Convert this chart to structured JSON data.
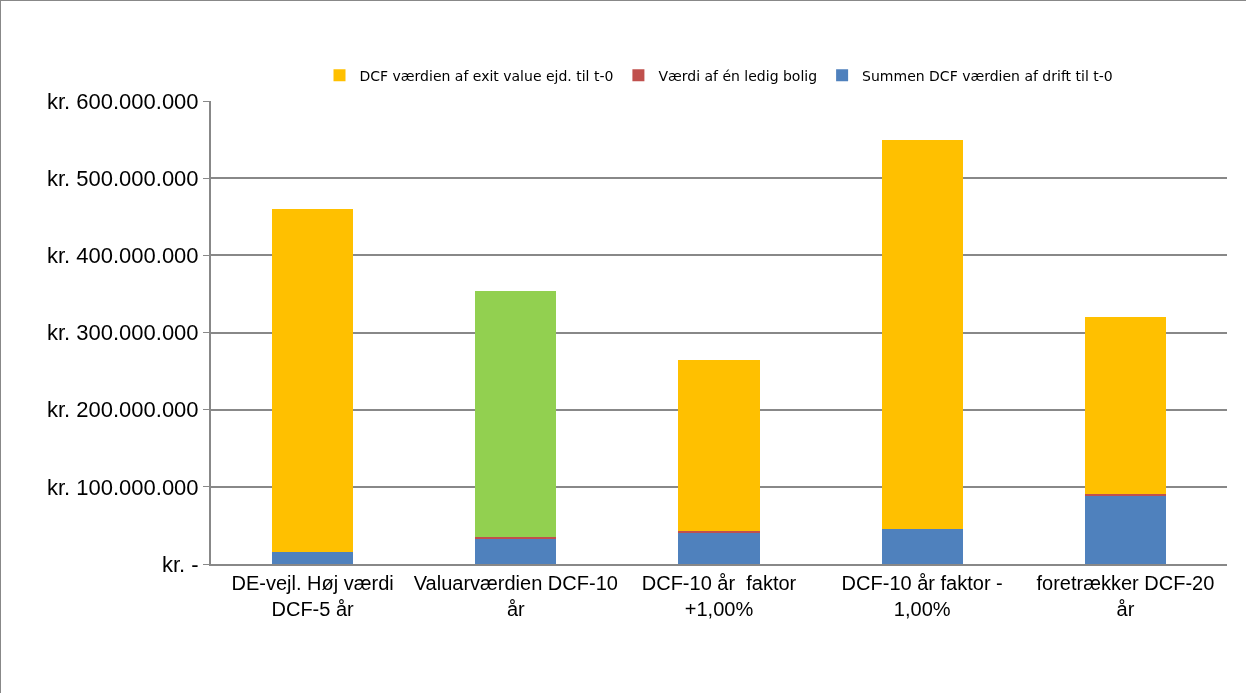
{
  "chart_data": {
    "type": "bar",
    "stacked": true,
    "categories": [
      "DE-vejl. Høj værdi DCF-5 år",
      "Valuarværdien DCF-10 år",
      "DCF-10 år  faktor +1,00%",
      "DCF-10 år faktor - 1,00%",
      "foretrækker DCF-20 år"
    ],
    "series": [
      {
        "name": "Summen DCF værdien af drift til t-0",
        "color": "#4f81bd",
        "values": [
          15000000,
          33000000,
          40000000,
          45000000,
          89000000
        ]
      },
      {
        "name": "Værdi af én ledig bolig",
        "color": "#c0504d",
        "values": [
          0,
          2000000,
          3000000,
          0,
          2000000
        ]
      },
      {
        "name": "DCF værdien af exit value ejd. til t-0",
        "color": "#ffc000",
        "colors": [
          "#ffc000",
          "#92d050",
          "#ffc000",
          "#ffc000",
          "#ffc000"
        ],
        "values": [
          445000000,
          319000000,
          221000000,
          505000000,
          229000000
        ]
      }
    ],
    "ylim": [
      0,
      600000000
    ],
    "yticks": [
      {
        "value": 0,
        "label": "kr. -"
      },
      {
        "value": 100000000,
        "label": "kr. 100.000.000"
      },
      {
        "value": 200000000,
        "label": "kr. 200.000.000"
      },
      {
        "value": 300000000,
        "label": "kr. 300.000.000"
      },
      {
        "value": 400000000,
        "label": "kr. 400.000.000"
      },
      {
        "value": 500000000,
        "label": "kr. 500.000.000"
      },
      {
        "value": 600000000,
        "label": "kr. 600.000.000"
      }
    ],
    "grid": "y",
    "legend": "top"
  }
}
